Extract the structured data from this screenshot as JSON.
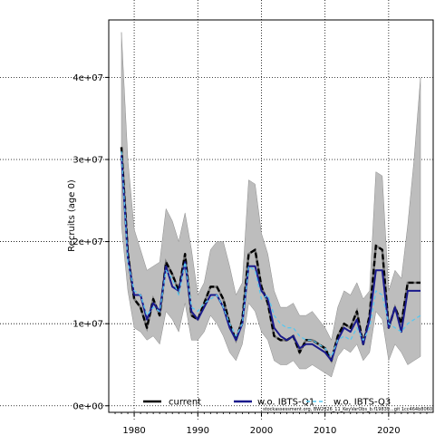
{
  "chart_data": {
    "type": "line",
    "ylabel": "Recruits (age 0)",
    "xlim": [
      1976,
      2027
    ],
    "ylim": [
      -800000,
      47000000
    ],
    "grid": true,
    "legend_position": "bottom",
    "x_ticks": [
      1980,
      1990,
      2000,
      2010,
      2020
    ],
    "y_ticks": [
      0,
      10000000,
      20000000,
      30000000,
      40000000
    ],
    "y_tick_labels": [
      "0e+00",
      "1e+07",
      "2e+07",
      "3e+07",
      "4e+07"
    ],
    "x": [
      1978,
      1979,
      1980,
      1981,
      1982,
      1983,
      1984,
      1985,
      1986,
      1987,
      1988,
      1989,
      1990,
      1991,
      1992,
      1993,
      1994,
      1995,
      1996,
      1997,
      1998,
      1999,
      2000,
      2001,
      2002,
      2003,
      2004,
      2005,
      2006,
      2007,
      2008,
      2009,
      2010,
      2011,
      2012,
      2013,
      2014,
      2015,
      2016,
      2017,
      2018,
      2019,
      2020,
      2021,
      2022,
      2023,
      2024,
      2025
    ],
    "band": {
      "upper": [
        45500000,
        30000000,
        21500000,
        19000000,
        16500000,
        17000000,
        17500000,
        24000000,
        22500000,
        20000000,
        23500000,
        19000000,
        13500000,
        15000000,
        19000000,
        20000000,
        20000000,
        17000000,
        13500000,
        15000000,
        27500000,
        27000000,
        21000000,
        18500000,
        14000000,
        12000000,
        12000000,
        12500000,
        11000000,
        11000000,
        11500000,
        10500000,
        9500000,
        8000000,
        12000000,
        14000000,
        13500000,
        15000000,
        13000000,
        14000000,
        28500000,
        28000000,
        14000000,
        16500000,
        15500000,
        22000000,
        30000000,
        40000000
      ],
      "lower": [
        22000000,
        14000000,
        9500000,
        9000000,
        8000000,
        8500000,
        7500000,
        11500000,
        10500000,
        9000000,
        12500000,
        8000000,
        8000000,
        9000000,
        11000000,
        10000000,
        8500000,
        6500000,
        5500000,
        7500000,
        12500000,
        11500000,
        9000000,
        8000000,
        5500000,
        5000000,
        5000000,
        5500000,
        4500000,
        4500000,
        5000000,
        4500000,
        4000000,
        3500000,
        6000000,
        7000000,
        6500000,
        7500000,
        5500000,
        6500000,
        11500000,
        10500000,
        5500000,
        7500000,
        6500000,
        5000000,
        5500000,
        6000000
      ]
    },
    "series": [
      {
        "name": "current",
        "color": "#000000",
        "values": [
          31500000,
          18500000,
          13000000,
          12000000,
          9500000,
          13000000,
          11000000,
          17500000,
          16000000,
          14000000,
          18500000,
          11000000,
          10500000,
          12500000,
          14500000,
          14500000,
          13000000,
          10000000,
          8000000,
          10500000,
          18500000,
          19000000,
          14500000,
          12500000,
          8500000,
          8000000,
          8000000,
          8500000,
          6500000,
          8000000,
          8000000,
          7500000,
          7000000,
          5500000,
          8500000,
          10000000,
          9500000,
          11500000,
          7500000,
          11000000,
          19500000,
          19000000,
          9500000,
          12000000,
          10000000,
          15000000,
          15000000,
          15000000
        ]
      },
      {
        "name": "w.o. IBTS-Q1",
        "color": "#1a1a8c",
        "values": [
          30500000,
          18000000,
          13500000,
          13500000,
          10500000,
          12500000,
          11500000,
          17000000,
          14500000,
          14000000,
          17500000,
          11500000,
          10500000,
          12000000,
          13500000,
          13500000,
          12000000,
          9500000,
          8000000,
          10000000,
          17000000,
          17000000,
          14000000,
          13000000,
          9500000,
          8500000,
          8000000,
          8500000,
          7000000,
          7500000,
          7500000,
          7000000,
          6500000,
          5500000,
          8000000,
          9500000,
          9000000,
          10500000,
          7500000,
          10500000,
          16500000,
          16500000,
          9500000,
          12000000,
          9000000,
          14000000,
          14000000,
          14000000
        ]
      },
      {
        "name": "w.o. IBTS-Q3",
        "color": "#58c8f0",
        "values": [
          31000000,
          17500000,
          14000000,
          13500000,
          11000000,
          12000000,
          11500000,
          16500000,
          15500000,
          13500000,
          17500000,
          12000000,
          11500000,
          12500000,
          13000000,
          13500000,
          12000000,
          10000000,
          8500000,
          10000000,
          17000000,
          16500000,
          13000000,
          13500000,
          11000000,
          10000000,
          9500000,
          9500000,
          8500000,
          8000000,
          8000000,
          7500000,
          7000000,
          6000000,
          8000000,
          8500000,
          8000000,
          9500000,
          8000000,
          9500000,
          14000000,
          13500000,
          10000000,
          9500000,
          9000000,
          10000000,
          10500000,
          11000000
        ]
      }
    ]
  },
  "footnote": "stockassessment.org, BW2026_11_KeyVarObs_b.f19839...git 1cc464b8060"
}
